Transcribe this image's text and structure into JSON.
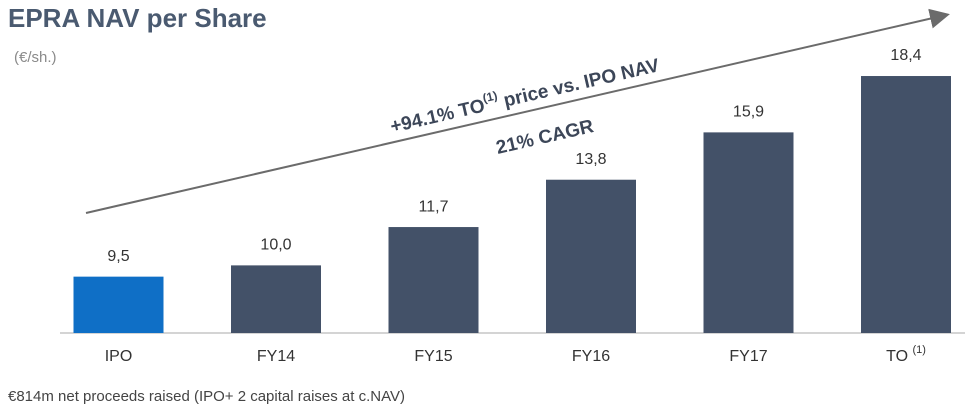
{
  "chart_data": {
    "type": "bar",
    "title": "EPRA NAV per Share",
    "subtitle": "(€/sh.)",
    "categories": [
      "IPO",
      "FY14",
      "FY15",
      "FY16",
      "FY17",
      "TO"
    ],
    "category_superscripts": [
      null,
      null,
      null,
      null,
      null,
      "(1)"
    ],
    "values": [
      9.5,
      10.0,
      11.7,
      13.8,
      15.9,
      18.4
    ],
    "value_labels": [
      "9,5",
      "10,0",
      "11,7",
      "13,8",
      "15,9",
      "18,4"
    ],
    "colors": [
      "#0f6fc6",
      "#435168",
      "#435168",
      "#435168",
      "#435168",
      "#435168"
    ],
    "ylim": [
      7,
      19
    ],
    "annotation": [
      "+94.1% TO",
      "(1)",
      " price vs. IPO NAV"
    ],
    "annotation_2": "21% CAGR",
    "footnote": "€814m net proceeds raised (IPO+ 2 capital raises at c.NAV)"
  }
}
